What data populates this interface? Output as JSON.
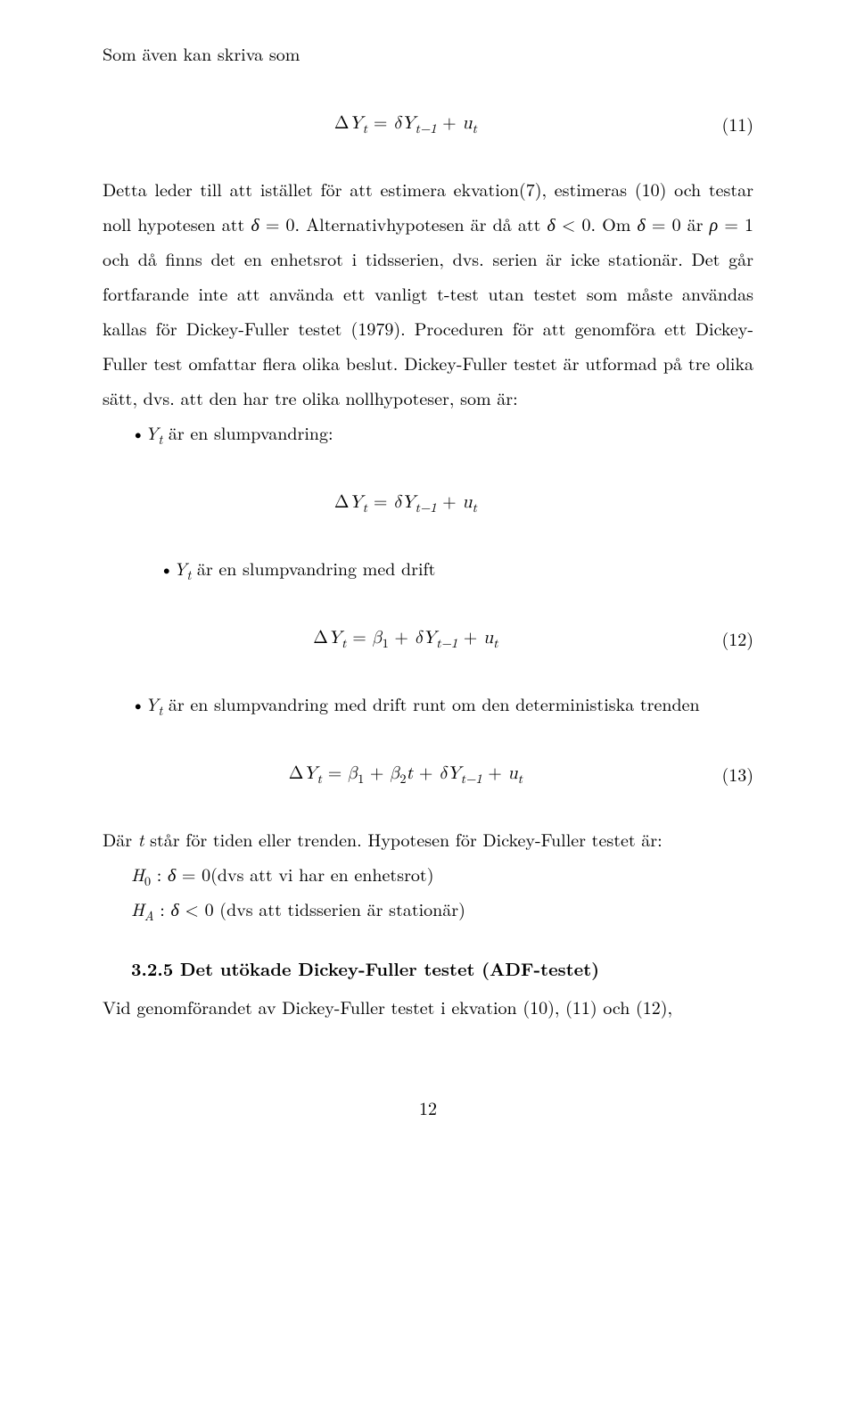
{
  "para1_lead": "Som även kan skriva som",
  "eq11": "Δ<span class=\"it\">Y</span><span class=\"sub it\">t</span> = <span class=\"it\">δY</span><span class=\"sub it\">t−1</span> + <span class=\"it\">u</span><span class=\"sub it\">t</span>",
  "num11": "(11)",
  "para2": "Detta leder till att istället för att estimera ekvation(7), estimeras (10) och testar noll hypotesen att <span class=\"it\">δ</span> = 0. Alternativhypotesen är då att <span class=\"it\">δ</span> &lt; 0. Om <span class=\"it\">δ</span> = 0 är <span class=\"it\">ρ</span> = 1 och då finns det en enhetsrot i tidsserien, dvs. serien är icke stationär. Det går fortfarande inte att använda ett vanligt t-test utan testet som måste användas kallas för Dickey-Fuller testet (1979). Proceduren för att genomföra ett Dickey-Fuller test omfattar flera olika beslut. Dickey-Fuller testet är utformad på tre olika sätt, dvs. att den har tre olika nollhypoteser, som är:",
  "bullet1": "•<span class=\"it\">Y</span><span class=\"sub it\">t</span> är en slumpvandring:",
  "eqA": "Δ<span class=\"it\">Y</span><span class=\"sub it\">t</span> = <span class=\"it\">δY</span><span class=\"sub it\">t−1</span> + <span class=\"it\">u</span><span class=\"sub it\">t</span>",
  "bullet2": "•<span class=\"it\">Y</span><span class=\"sub it\">t</span> är en slumpvandring med drift",
  "eq12": "Δ<span class=\"it\">Y</span><span class=\"sub it\">t</span> = <span class=\"it\">β</span><span class=\"sub\">1</span> + <span class=\"it\">δY</span><span class=\"sub it\">t−1</span> + <span class=\"it\">u</span><span class=\"sub it\">t</span>",
  "num12": "(12)",
  "bullet3": "•<span class=\"it\">Y</span><span class=\"sub it\">t</span> är en slumpvandring med drift runt om den deterministiska trenden",
  "eq13": "Δ<span class=\"it\">Y</span><span class=\"sub it\">t</span> = <span class=\"it\">β</span><span class=\"sub\">1</span> + <span class=\"it\">β</span><span class=\"sub\">2</span><span class=\"it\">t</span> + <span class=\"it\">δY</span><span class=\"sub it\">t−1</span> + <span class=\"it\">u</span><span class=\"sub it\">t</span>",
  "num13": "(13)",
  "para3": "Där <span class=\"it\">t</span> står för tiden eller trenden. Hypotesen för Dickey-Fuller testet är:",
  "hyp0": "<span class=\"it\">H</span><span class=\"sub\">0</span> : <span class=\"it\">δ</span> = 0(dvs att vi har en enhetsrot)",
  "hypA": "<span class=\"it\">H</span><span class=\"sub it\">A</span> : <span class=\"it\">δ</span> &lt; 0 (dvs att tidsserien är stationär)",
  "sectionTitle": "3.2.5 Det utökade Dickey-Fuller testet (ADF-testet)",
  "para4": "Vid genomförandet av Dickey-Fuller testet i ekvation (10), (11) och (12),",
  "pageNum": "12"
}
